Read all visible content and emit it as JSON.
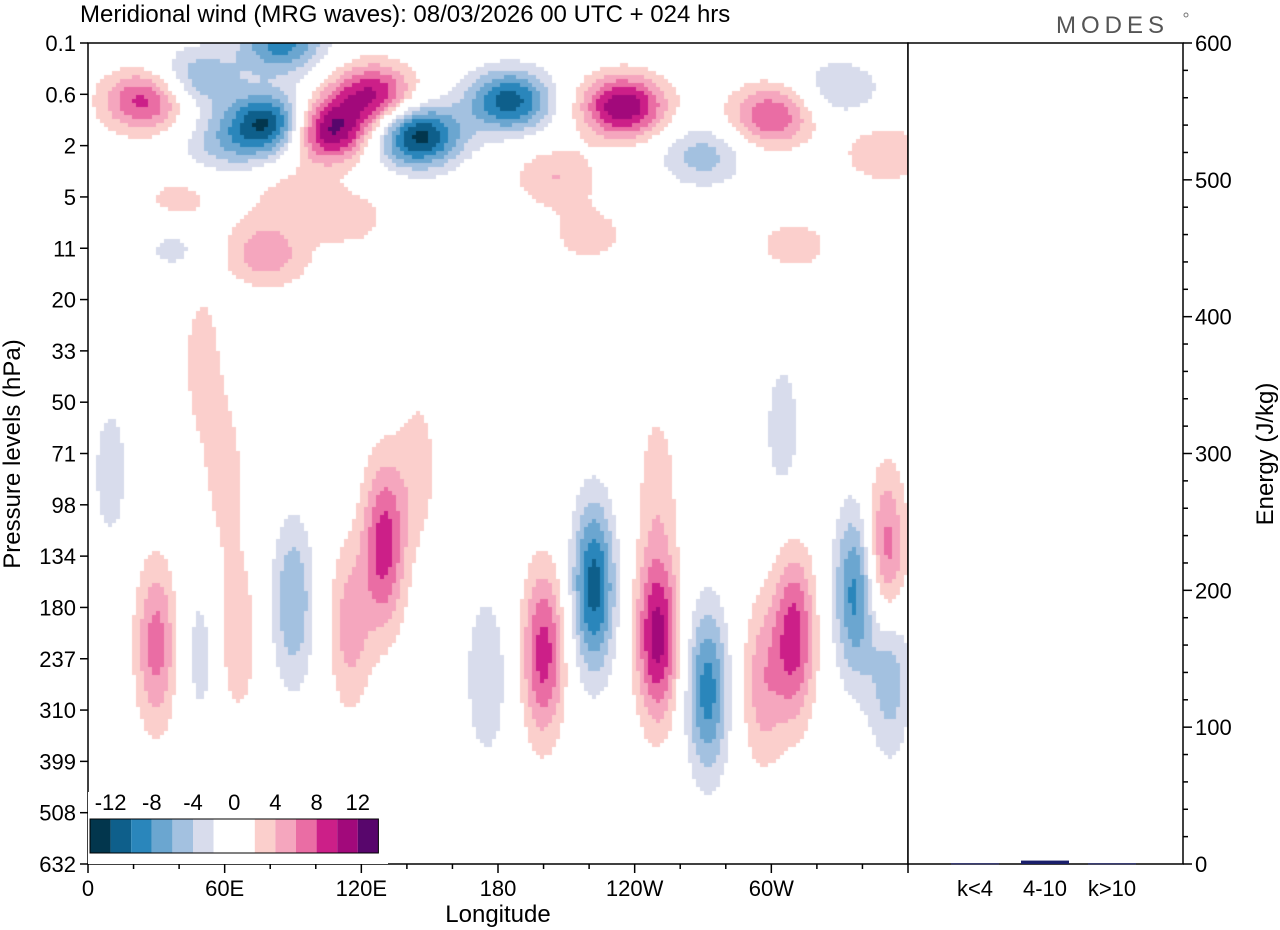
{
  "title": "Meridional wind (MRG waves):  08/03/2026  00 UTC  + 024 hrs",
  "logo": "MODES",
  "colors": {
    "palette": [
      "#02364d",
      "#0e5f8b",
      "#2a86bb",
      "#6ba6d0",
      "#a3c1e0",
      "#d8dcec",
      "#ffffff",
      "#ffffff",
      "#fbcfcc",
      "#f5a6be",
      "#ea6da4",
      "#cc1f88",
      "#a2097b",
      "#58066c"
    ],
    "axis": "#000000"
  },
  "chart_data": [
    {
      "type": "heatmap",
      "title": "Meridional wind (MRG waves):  08/03/2026  00 UTC  + 024 hrs",
      "xlabel": "Longitude",
      "ylabel": "Pressure levels (hPa)",
      "x_ticks": [
        "0",
        "60E",
        "120E",
        "180",
        "120W",
        "60W"
      ],
      "x_tick_values": [
        0,
        60,
        120,
        180,
        240,
        300
      ],
      "xlim": [
        0,
        360
      ],
      "y_ticks": [
        "0.1",
        "0.6",
        "2",
        "5",
        "11",
        "20",
        "33",
        "50",
        "71",
        "98",
        "134",
        "180",
        "237",
        "310",
        "399",
        "508",
        "632"
      ],
      "colorbar": {
        "labels": [
          "-12",
          "-8",
          "-4",
          "0",
          "4",
          "8",
          "12"
        ],
        "levels": [
          -14,
          -12,
          -10,
          -8,
          -6,
          -4,
          -2,
          0,
          2,
          4,
          6,
          8,
          10,
          12,
          14
        ]
      },
      "features": [
        {
          "lon": 25,
          "lev": 0.7,
          "v": 9
        },
        {
          "lon": 48,
          "lev": 0.35,
          "v": -6
        },
        {
          "lon": 58,
          "lev": 2.0,
          "v": -4
        },
        {
          "lon": 80,
          "lev": 1.2,
          "v": -13
        },
        {
          "lon": 85,
          "lev": 0.1,
          "v": -9
        },
        {
          "lon": 105,
          "lev": 1.4,
          "v": 13
        },
        {
          "lon": 125,
          "lev": 0.6,
          "v": 10
        },
        {
          "lon": 145,
          "lev": 1.6,
          "v": -13
        },
        {
          "lon": 185,
          "lev": 0.7,
          "v": -11
        },
        {
          "lon": 205,
          "lev": 3.5,
          "v": 4
        },
        {
          "lon": 235,
          "lev": 0.8,
          "v": 12
        },
        {
          "lon": 270,
          "lev": 2.4,
          "v": -5
        },
        {
          "lon": 300,
          "lev": 1.0,
          "v": 8
        },
        {
          "lon": 330,
          "lev": 0.5,
          "v": -4
        },
        {
          "lon": 350,
          "lev": 2.3,
          "v": 4
        },
        {
          "lon": 40,
          "lev": 5.5,
          "v": 3
        },
        {
          "lon": 90,
          "lev": 5.0,
          "v": 3
        },
        {
          "lon": 115,
          "lev": 7.0,
          "v": 3
        },
        {
          "lon": 40,
          "lev": 10.5,
          "v": -3
        },
        {
          "lon": 75,
          "lev": 10.5,
          "v": 3
        },
        {
          "lon": 170,
          "lev": 10.5,
          "v": -3
        },
        {
          "lon": 220,
          "lev": 9.0,
          "v": 3
        },
        {
          "lon": 310,
          "lev": 10.5,
          "v": 3
        },
        {
          "lon": 80,
          "lev": 13.0,
          "v": 3
        },
        {
          "lon": 165,
          "lev": 14.0,
          "v": 3
        },
        {
          "lon": 50,
          "lev": 36.0,
          "v": 3
        },
        {
          "lon": 305,
          "lev": 60.0,
          "v": -3
        },
        {
          "lon": 10,
          "lev": 80.0,
          "v": -3
        },
        {
          "lon": 60,
          "lev": 80.0,
          "v": 3
        },
        {
          "lon": 145,
          "lev": 78.0,
          "v": 3
        },
        {
          "lon": 250,
          "lev": 85.0,
          "v": 3
        },
        {
          "lon": 30,
          "lev": 220.0,
          "v": 7
        },
        {
          "lon": 50,
          "lev": 230.0,
          "v": -3
        },
        {
          "lon": 65,
          "lev": 210.0,
          "v": 4
        },
        {
          "lon": 90,
          "lev": 175.0,
          "v": -6
        },
        {
          "lon": 115,
          "lev": 200.0,
          "v": 5
        },
        {
          "lon": 130,
          "lev": 125.0,
          "v": 9
        },
        {
          "lon": 175,
          "lev": 260.0,
          "v": -4
        },
        {
          "lon": 200,
          "lev": 230.0,
          "v": 9
        },
        {
          "lon": 222,
          "lev": 160.0,
          "v": -11
        },
        {
          "lon": 250,
          "lev": 210.0,
          "v": 11
        },
        {
          "lon": 272,
          "lev": 280.0,
          "v": -9
        },
        {
          "lon": 296,
          "lev": 270.0,
          "v": 5
        },
        {
          "lon": 310,
          "lev": 210.0,
          "v": 9
        },
        {
          "lon": 337,
          "lev": 165.0,
          "v": -9
        },
        {
          "lon": 350,
          "lev": 135.0,
          "v": 8
        },
        {
          "lon": 352,
          "lev": 250.0,
          "v": -6
        }
      ]
    },
    {
      "type": "bar",
      "ylabel": "Energy (J/kg)",
      "categories": [
        "k<4",
        "4-10",
        "k>10"
      ],
      "values": [
        0.5,
        2.5,
        0.5
      ],
      "ylim": [
        0,
        600
      ],
      "y_ticks": [
        "0",
        "100",
        "200",
        "300",
        "400",
        "500",
        "600"
      ],
      "y_tick_values": [
        0,
        100,
        200,
        300,
        400,
        500,
        600
      ]
    }
  ]
}
